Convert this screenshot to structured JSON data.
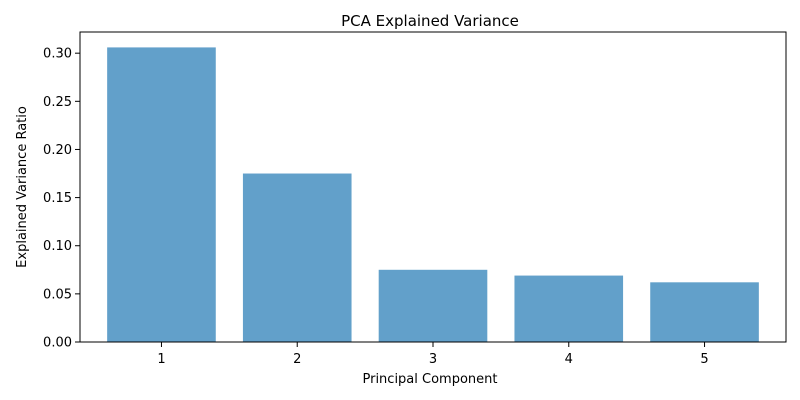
{
  "chart_data": {
    "type": "bar",
    "title": "PCA Explained Variance",
    "xlabel": "Principal Component",
    "ylabel": "Explained Variance Ratio",
    "categories": [
      "1",
      "2",
      "3",
      "4",
      "5"
    ],
    "values": [
      0.306,
      0.175,
      0.075,
      0.069,
      0.062
    ],
    "ylim": [
      0,
      0.322
    ],
    "yticks": [
      "0.00",
      "0.05",
      "0.10",
      "0.15",
      "0.20",
      "0.25",
      "0.30"
    ],
    "grid": false,
    "legend": "none",
    "bar_color": "#62a0ca"
  }
}
